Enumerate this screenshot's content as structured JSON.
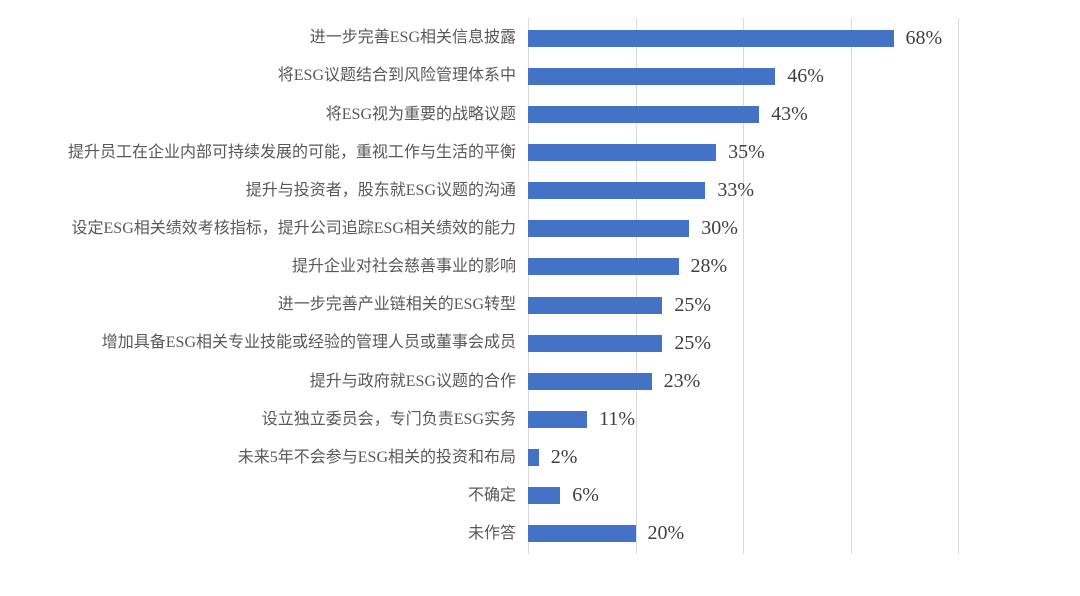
{
  "chart_data": {
    "type": "bar",
    "orientation": "horizontal",
    "title": "",
    "xlabel": "",
    "ylabel": "",
    "xlim": [
      0,
      80
    ],
    "x_ticks": [
      0,
      20,
      40,
      60,
      80
    ],
    "grid": "vertical-only",
    "legend": "none",
    "bar_color": "#4472C4",
    "gridline_color": "#D9D9D9",
    "category_text_color": "#595959",
    "value_text_color": "#404040",
    "categories": [
      "进一步完善ESG相关信息披露",
      "将ESG议题结合到风险管理体系中",
      "将ESG视为重要的战略议题",
      "提升员工在企业内部可持续发展的可能，重视工作与生活的平衡",
      "提升与投资者，股东就ESG议题的沟通",
      "设定ESG相关绩效考核指标，提升公司追踪ESG相关绩效的能力",
      "提升企业对社会慈善事业的影响",
      "进一步完善产业链相关的ESG转型",
      "增加具备ESG相关专业技能或经验的管理人员或董事会成员",
      "提升与政府就ESG议题的合作",
      "设立独立委员会，专门负责ESG实务",
      "未来5年不会参与ESG相关的投资和布局",
      "不确定",
      "未作答"
    ],
    "values": [
      68,
      46,
      43,
      35,
      33,
      30,
      28,
      25,
      25,
      23,
      11,
      2,
      6,
      20
    ],
    "value_labels": [
      "68%",
      "46%",
      "43%",
      "35%",
      "33%",
      "30%",
      "28%",
      "25%",
      "25%",
      "23%",
      "11%",
      "2%",
      "6%",
      "20%"
    ]
  }
}
